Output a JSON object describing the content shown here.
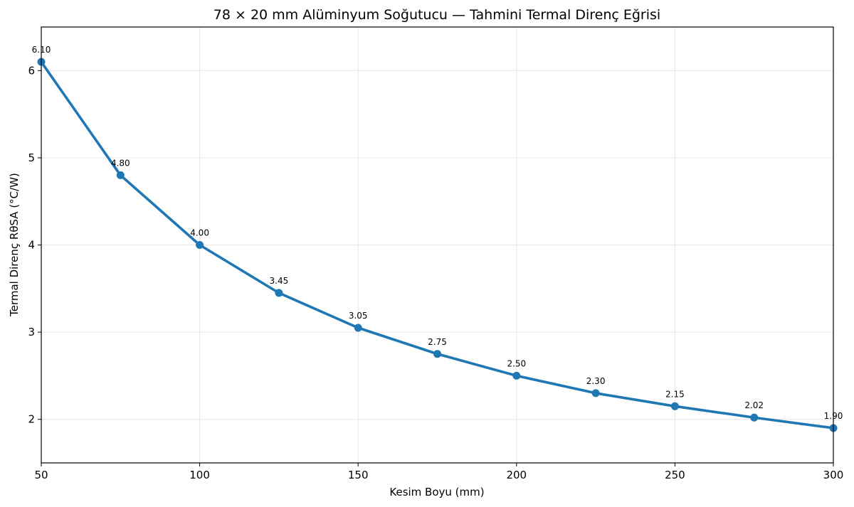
{
  "chart_data": {
    "type": "line",
    "title": "78 × 20 mm Alüminyum Soğutucu — Tahmini Termal Direnç Eğrisi",
    "xlabel": "Kesim Boyu (mm)",
    "ylabel": "Termal Direnç RθSA (°C/W)",
    "xlim": [
      50,
      300
    ],
    "ylim": [
      1.5,
      6.5
    ],
    "x_ticks": [
      50,
      100,
      150,
      200,
      250,
      300
    ],
    "y_ticks": [
      2,
      3,
      4,
      5,
      6
    ],
    "grid": true,
    "color": "#1f77b4",
    "x": [
      50,
      75,
      100,
      125,
      150,
      175,
      200,
      225,
      250,
      275,
      300
    ],
    "values": [
      6.1,
      4.8,
      4.0,
      3.45,
      3.05,
      2.75,
      2.5,
      2.3,
      2.15,
      2.02,
      1.9
    ],
    "data_labels": [
      "6.10",
      "4.80",
      "4.00",
      "3.45",
      "3.05",
      "2.75",
      "2.50",
      "2.30",
      "2.15",
      "2.02",
      "1.90"
    ]
  }
}
